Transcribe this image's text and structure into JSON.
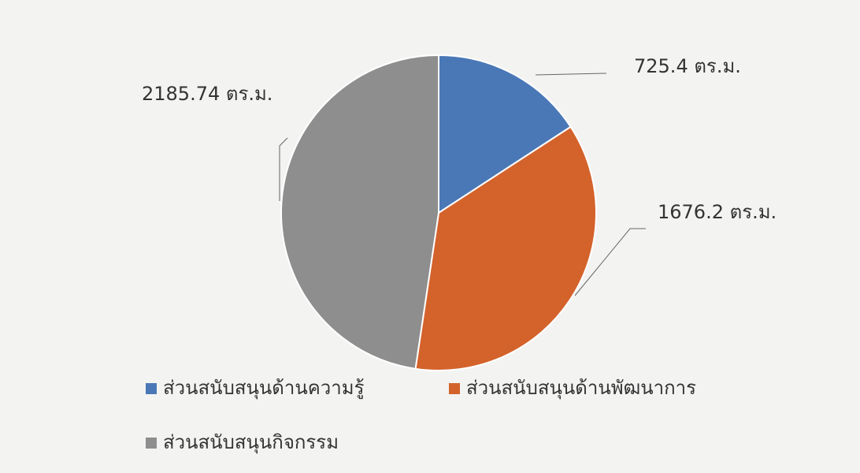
{
  "chart_data": {
    "type": "pie",
    "categories": [
      "ส่วนสนับสนุนด้านความรู้",
      "ส่วนสนับสนุนด้านพัฒนาการ",
      "ส่วนสนับสนุนกิจกรรม"
    ],
    "values": [
      725.4,
      1676.2,
      2185.74
    ],
    "value_labels": [
      "725.4 ตร.ม.",
      "1676.2 ตร.ม.",
      "2185.74 ตร.ม."
    ],
    "colors": [
      "#4a78b6",
      "#d4622b",
      "#8e8e8e"
    ]
  }
}
